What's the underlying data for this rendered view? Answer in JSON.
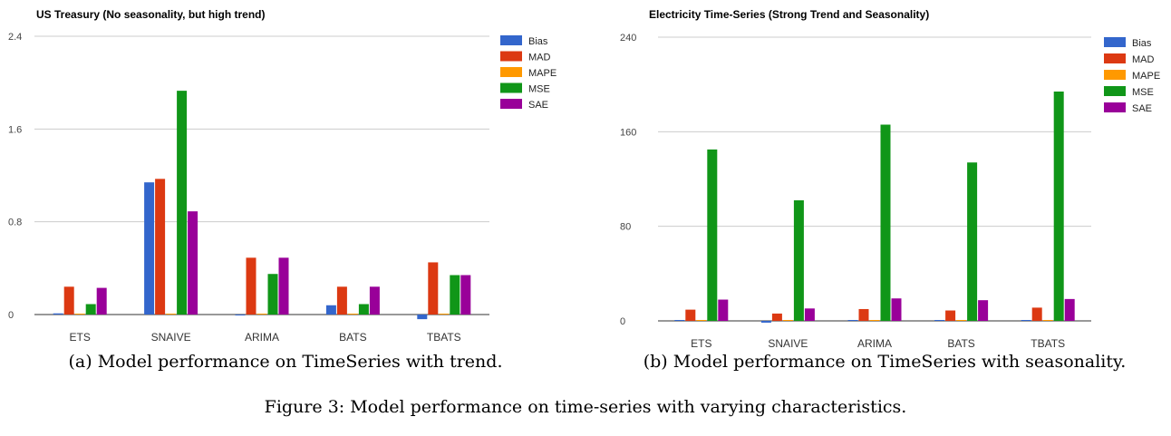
{
  "series_colors": [
    "#3366cc",
    "#dc3912",
    "#ff9900",
    "#109618",
    "#990099"
  ],
  "chart_data": [
    {
      "type": "bar",
      "title": "US Treasury (No seasonality, but high trend)",
      "categories": [
        "ETS",
        "SNAIVE",
        "ARIMA",
        "BATS",
        "TBATS"
      ],
      "yticks": [
        "0",
        "0.8",
        "1.6",
        "2.4"
      ],
      "ylim": [
        0,
        2.4
      ],
      "grid": true,
      "legend_position": "top-right",
      "series": [
        {
          "name": "Bias",
          "values": [
            0.01,
            1.14,
            -0.005,
            0.08,
            -0.04
          ]
        },
        {
          "name": "MAD",
          "values": [
            0.24,
            1.17,
            0.49,
            0.24,
            0.45
          ]
        },
        {
          "name": "MAPE",
          "values": [
            0.005,
            0.005,
            0.003,
            0.003,
            0.004
          ]
        },
        {
          "name": "MSE",
          "values": [
            0.09,
            1.93,
            0.35,
            0.09,
            0.34
          ]
        },
        {
          "name": "SAE",
          "values": [
            0.23,
            0.89,
            0.49,
            0.24,
            0.34
          ]
        }
      ]
    },
    {
      "type": "bar",
      "title": "Electricity Time-Series (Strong Trend and Seasonality)",
      "categories": [
        "ETS",
        "SNAIVE",
        "ARIMA",
        "BATS",
        "TBATS"
      ],
      "yticks": [
        "0",
        "80",
        "160",
        "240"
      ],
      "ylim": [
        0,
        240
      ],
      "grid": true,
      "legend_position": "top-right",
      "series": [
        {
          "name": "Bias",
          "values": [
            0.5,
            -1.5,
            0.3,
            0.4,
            0.6
          ]
        },
        {
          "name": "MAD",
          "values": [
            9.5,
            6.2,
            10.0,
            8.8,
            11.2
          ]
        },
        {
          "name": "MAPE",
          "values": [
            0.3,
            0.3,
            0.3,
            0.3,
            0.3
          ]
        },
        {
          "name": "MSE",
          "values": [
            145,
            102,
            166,
            134,
            194
          ]
        },
        {
          "name": "SAE",
          "values": [
            18,
            10.5,
            19,
            17.5,
            18.5
          ]
        }
      ]
    }
  ],
  "captions": {
    "a": "(a) Model performance on TimeSeries with trend.",
    "b": "(b) Model performance on TimeSeries with seasonality.",
    "figure": "Figure 3: Model performance on time-series with varying characteristics."
  }
}
